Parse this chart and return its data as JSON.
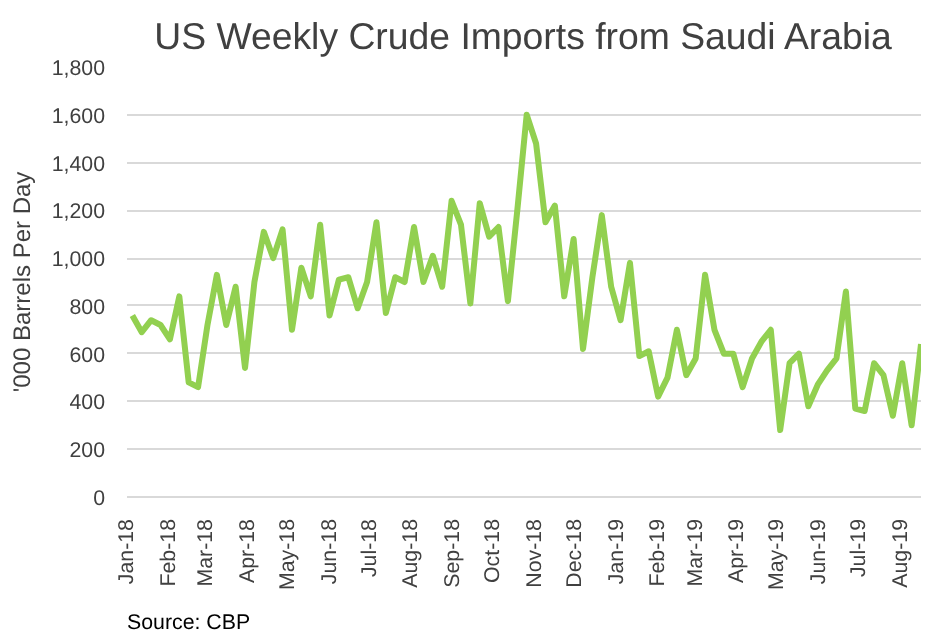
{
  "chart_data": {
    "type": "line",
    "title": "US Weekly Crude Imports from Saudi Arabia",
    "ylabel": "'000 Barrels Per Day",
    "annotations": [
      "Source: CBP"
    ],
    "x": [
      "2018-01-05",
      "2018-01-12",
      "2018-01-19",
      "2018-01-26",
      "2018-02-02",
      "2018-02-09",
      "2018-02-16",
      "2018-02-23",
      "2018-03-02",
      "2018-03-09",
      "2018-03-16",
      "2018-03-23",
      "2018-03-30",
      "2018-04-06",
      "2018-04-13",
      "2018-04-20",
      "2018-04-27",
      "2018-05-04",
      "2018-05-11",
      "2018-05-18",
      "2018-05-25",
      "2018-06-01",
      "2018-06-08",
      "2018-06-15",
      "2018-06-22",
      "2018-06-29",
      "2018-07-06",
      "2018-07-13",
      "2018-07-20",
      "2018-07-27",
      "2018-08-03",
      "2018-08-10",
      "2018-08-17",
      "2018-08-24",
      "2018-08-31",
      "2018-09-07",
      "2018-09-14",
      "2018-09-21",
      "2018-09-28",
      "2018-10-05",
      "2018-10-12",
      "2018-10-19",
      "2018-10-26",
      "2018-11-02",
      "2018-11-09",
      "2018-11-16",
      "2018-11-23",
      "2018-11-30",
      "2018-12-07",
      "2018-12-14",
      "2018-12-21",
      "2018-12-28",
      "2019-01-04",
      "2019-01-11",
      "2019-01-18",
      "2019-01-25",
      "2019-02-01",
      "2019-02-08",
      "2019-02-15",
      "2019-02-22",
      "2019-03-01",
      "2019-03-08",
      "2019-03-15",
      "2019-03-22",
      "2019-03-29",
      "2019-04-05",
      "2019-04-12",
      "2019-04-19",
      "2019-04-26",
      "2019-05-03",
      "2019-05-10",
      "2019-05-17",
      "2019-05-24",
      "2019-05-31",
      "2019-06-07",
      "2019-06-14",
      "2019-06-21",
      "2019-06-28",
      "2019-07-05",
      "2019-07-12",
      "2019-07-19",
      "2019-07-26",
      "2019-08-02",
      "2019-08-09",
      "2019-08-16"
    ],
    "series": [
      {
        "color": "#92d050",
        "values": [
          760,
          690,
          740,
          720,
          660,
          840,
          480,
          460,
          720,
          930,
          720,
          880,
          540,
          900,
          1110,
          1000,
          1120,
          700,
          960,
          840,
          1140,
          760,
          910,
          920,
          790,
          900,
          1150,
          770,
          920,
          900,
          1130,
          900,
          1010,
          880,
          1240,
          1140,
          810,
          1230,
          1090,
          1130,
          820,
          1200,
          1600,
          1480,
          1150,
          1220,
          840,
          1080,
          620,
          920,
          1180,
          880,
          740,
          980,
          590,
          610,
          420,
          500,
          700,
          510,
          580,
          930,
          700,
          600,
          600,
          460,
          580,
          650,
          700,
          280,
          560,
          600,
          380,
          470,
          530,
          580,
          860,
          370,
          360,
          560,
          510,
          340,
          560,
          300,
          640
        ]
      }
    ],
    "xlim": [
      "2018-01-01",
      "2019-08-16"
    ],
    "xticks": [
      {
        "value": "2018-01-01",
        "label": "Jan-18"
      },
      {
        "value": "2018-02-01",
        "label": "Feb-18"
      },
      {
        "value": "2018-03-01",
        "label": "Mar-18"
      },
      {
        "value": "2018-04-01",
        "label": "Apr-18"
      },
      {
        "value": "2018-05-01",
        "label": "May-18"
      },
      {
        "value": "2018-06-01",
        "label": "Jun-18"
      },
      {
        "value": "2018-07-01",
        "label": "Jul-18"
      },
      {
        "value": "2018-08-01",
        "label": "Aug-18"
      },
      {
        "value": "2018-09-01",
        "label": "Sep-18"
      },
      {
        "value": "2018-10-01",
        "label": "Oct-18"
      },
      {
        "value": "2018-11-01",
        "label": "Nov-18"
      },
      {
        "value": "2018-12-01",
        "label": "Dec-18"
      },
      {
        "value": "2019-01-01",
        "label": "Jan-19"
      },
      {
        "value": "2019-02-01",
        "label": "Feb-19"
      },
      {
        "value": "2019-03-01",
        "label": "Mar-19"
      },
      {
        "value": "2019-04-01",
        "label": "Apr-19"
      },
      {
        "value": "2019-05-01",
        "label": "May-19"
      },
      {
        "value": "2019-06-01",
        "label": "Jun-19"
      },
      {
        "value": "2019-07-01",
        "label": "Jul-19"
      },
      {
        "value": "2019-08-01",
        "label": "Aug-19"
      }
    ],
    "ylim": [
      0,
      1800
    ],
    "yticks": [
      {
        "value": 0,
        "label": "0"
      },
      {
        "value": 200,
        "label": "200"
      },
      {
        "value": 400,
        "label": "400"
      },
      {
        "value": 600,
        "label": "600"
      },
      {
        "value": 800,
        "label": "800"
      },
      {
        "value": 1000,
        "label": "1,000"
      },
      {
        "value": 1200,
        "label": "1,200"
      },
      {
        "value": 1400,
        "label": "1,400"
      },
      {
        "value": 1600,
        "label": "1,600"
      },
      {
        "value": 1800,
        "label": "1,800"
      }
    ],
    "grid": "y",
    "marker": "none",
    "line_style": "solid"
  }
}
